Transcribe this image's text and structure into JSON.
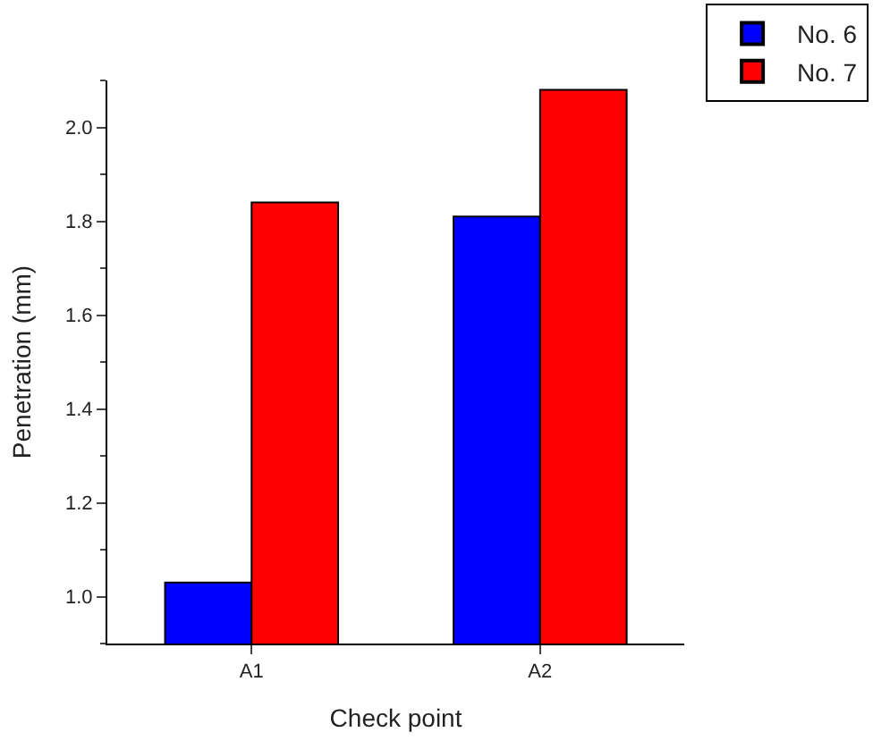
{
  "chart_data": {
    "type": "bar",
    "xlabel": "Check point",
    "ylabel": "Penetration (mm)",
    "categories": [
      "A1",
      "A2"
    ],
    "series": [
      {
        "name": "No. 6",
        "color": "#0000ff",
        "values": [
          1.03,
          1.81
        ]
      },
      {
        "name": "No. 7",
        "color": "#ff0000",
        "values": [
          1.84,
          2.08
        ]
      }
    ],
    "ylim": [
      0.9,
      2.1
    ],
    "yticks": [
      {
        "value": 1.0,
        "label": "1.0"
      },
      {
        "value": 1.2,
        "label": "1.2"
      },
      {
        "value": 1.4,
        "label": "1.4"
      },
      {
        "value": 1.6,
        "label": "1.6"
      },
      {
        "value": 1.8,
        "label": "1.8"
      },
      {
        "value": 2.0,
        "label": "2.0"
      }
    ],
    "legend": "top right"
  }
}
